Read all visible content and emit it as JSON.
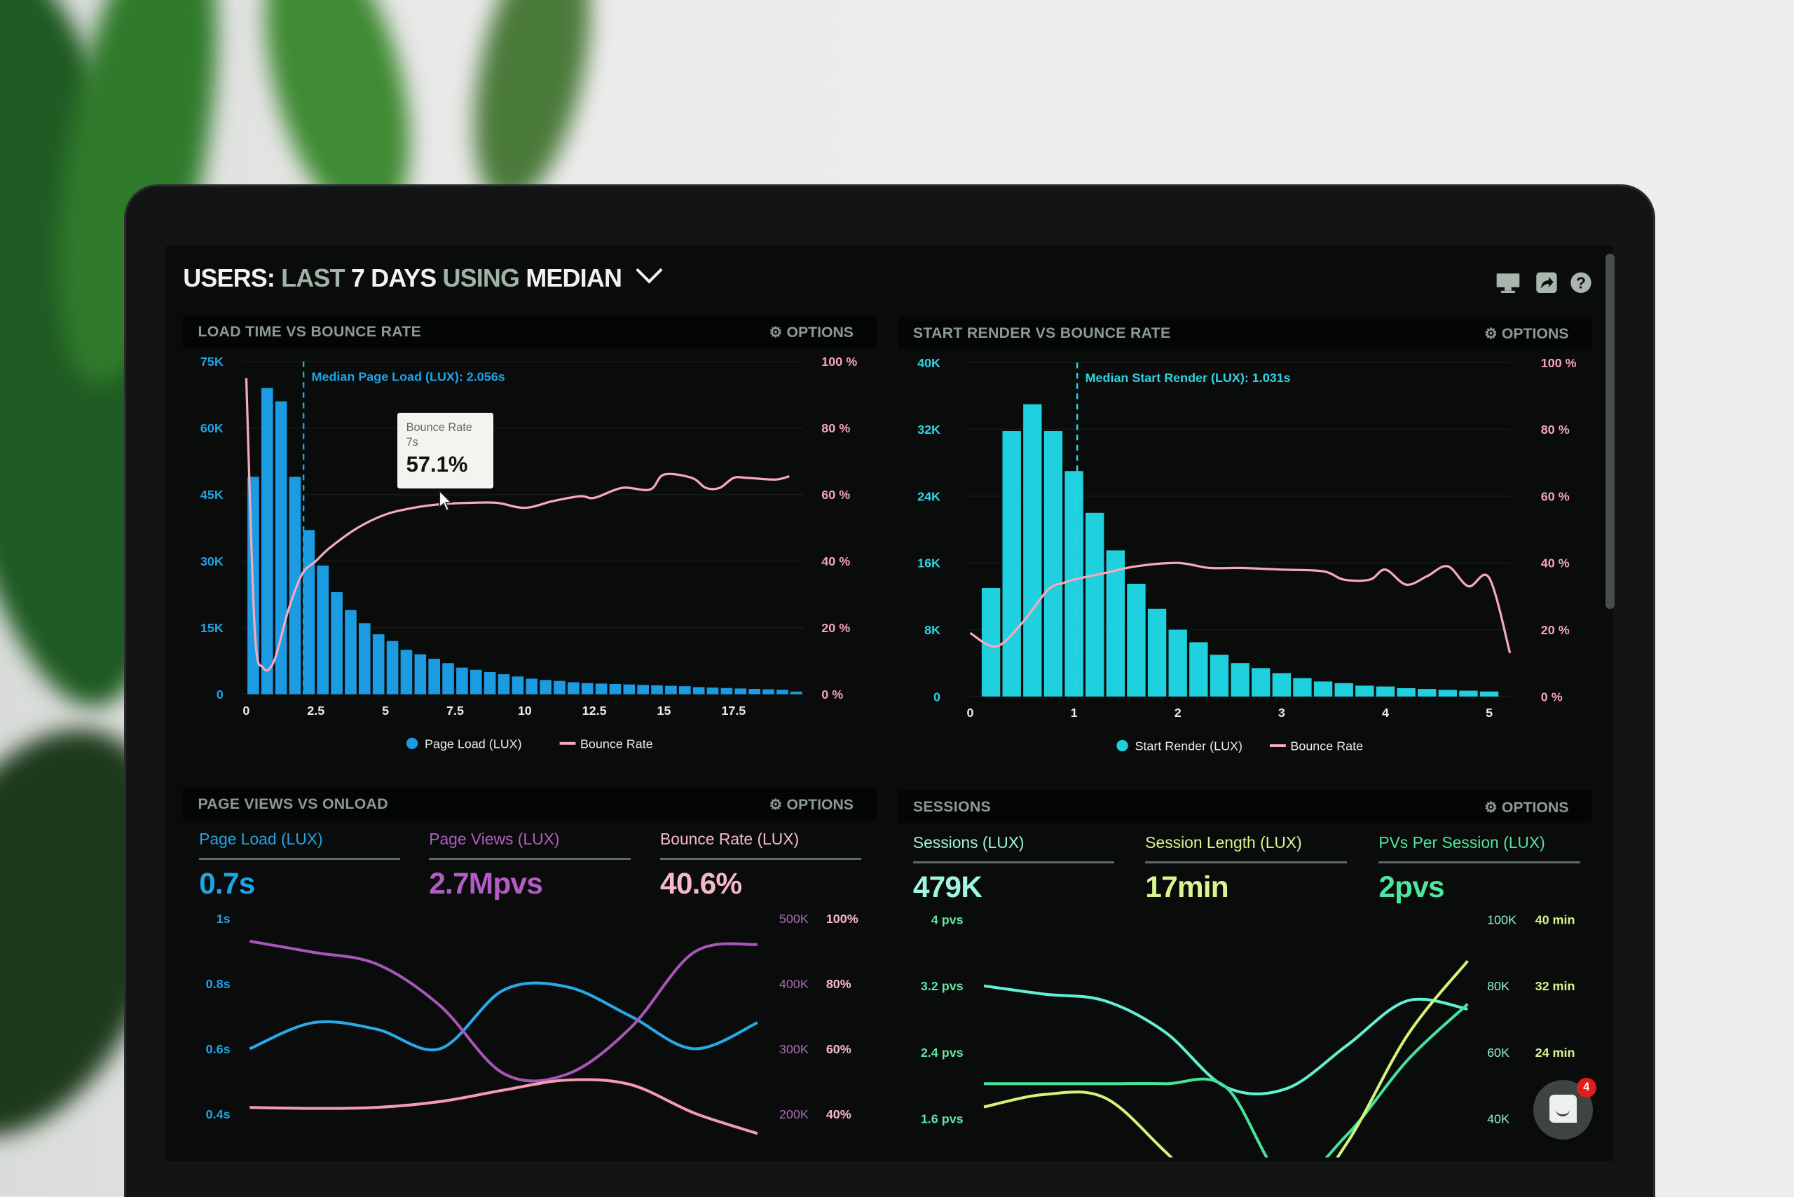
{
  "header": {
    "title_parts": [
      "USERS:",
      "LAST",
      "7 DAYS",
      "USING",
      "MEDIAN"
    ],
    "icons": [
      "monitor-icon",
      "share-icon",
      "help-icon"
    ],
    "help_glyph": "?"
  },
  "options_label": "OPTIONS",
  "tooltip": {
    "series": "Bounce Rate",
    "x": "7s",
    "value": "57.1%"
  },
  "chat": {
    "badge_count": "4"
  },
  "kpis_page_views": [
    {
      "label": "Page Load (LUX)",
      "value": "0.7s",
      "color": "#1ea5e6"
    },
    {
      "label": "Page Views (LUX)",
      "value": "2.7Mpvs",
      "color": "#b25cc4"
    },
    {
      "label": "Bounce Rate (LUX)",
      "value": "40.6%",
      "color": "#f7b9c8"
    }
  ],
  "kpis_sessions": [
    {
      "label": "Sessions (LUX)",
      "value": "479K",
      "color": "#9ff5e0"
    },
    {
      "label": "Session Length (LUX)",
      "value": "17min",
      "color": "#d9f58f"
    },
    {
      "label": "PVs Per Session (LUX)",
      "value": "2pvs",
      "color": "#4fe6a0"
    }
  ],
  "chart_data": [
    {
      "type": "bar+line",
      "title": "LOAD TIME VS BOUNCE RATE",
      "xlim": [
        0,
        20
      ],
      "ylim_left": [
        0,
        75000
      ],
      "ylim_right": [
        0,
        100
      ],
      "x_ticks": [
        {
          "v": 0,
          "label": "0"
        },
        {
          "v": 2.5,
          "label": "2.5"
        },
        {
          "v": 5,
          "label": "5"
        },
        {
          "v": 7.5,
          "label": "7.5"
        },
        {
          "v": 10,
          "label": "10"
        },
        {
          "v": 12.5,
          "label": "12.5"
        },
        {
          "v": 15,
          "label": "15"
        },
        {
          "v": 17.5,
          "label": "17.5"
        }
      ],
      "y_left_ticks": [
        {
          "v": 75000,
          "label": "75K"
        },
        {
          "v": 60000,
          "label": "60K"
        },
        {
          "v": 45000,
          "label": "45K"
        },
        {
          "v": 30000,
          "label": "30K"
        },
        {
          "v": 15000,
          "label": "15K"
        },
        {
          "v": 0,
          "label": "0"
        }
      ],
      "y_right_ticks": [
        {
          "v": 100,
          "label": "100 %"
        },
        {
          "v": 80,
          "label": "80 %"
        },
        {
          "v": 60,
          "label": "60 %"
        },
        {
          "v": 40,
          "label": "40 %"
        },
        {
          "v": 20,
          "label": "20 %"
        },
        {
          "v": 0,
          "label": "0 %"
        }
      ],
      "grid": true,
      "legend": [
        "Page Load (LUX)",
        "Bounce Rate"
      ],
      "legend_position": "bottom",
      "annotation": {
        "x": 2.056,
        "label": "Median Page Load (LUX): 2.056s"
      },
      "bar_series": {
        "name": "Page Load (LUX)",
        "color": "#1b9be2",
        "bin_width": 0.5,
        "x": [
          0,
          0.5,
          1,
          1.5,
          2,
          2.5,
          3,
          3.5,
          4,
          4.5,
          5,
          5.5,
          6,
          6.5,
          7,
          7.5,
          8,
          8.5,
          9,
          9.5,
          10,
          10.5,
          11,
          11.5,
          12,
          12.5,
          13,
          13.5,
          14,
          14.5,
          15,
          15.5,
          16,
          16.5,
          17,
          17.5,
          18,
          18.5,
          19,
          19.5
        ],
        "values": [
          49000,
          69000,
          66000,
          49000,
          37000,
          29000,
          23000,
          19000,
          16000,
          13500,
          12000,
          10000,
          9000,
          8000,
          7000,
          6000,
          5500,
          5000,
          4500,
          4000,
          3500,
          3200,
          3000,
          2700,
          2500,
          2400,
          2300,
          2200,
          2100,
          2000,
          1900,
          1800,
          1600,
          1500,
          1400,
          1300,
          1200,
          1100,
          1000,
          600
        ]
      },
      "line_series": {
        "name": "Bounce Rate",
        "color": "#f5a9bd",
        "x": [
          0,
          0.3,
          0.6,
          1.0,
          1.5,
          2,
          2.5,
          3,
          4,
          5,
          6,
          7,
          8,
          9,
          10,
          11,
          12,
          12.5,
          13.5,
          14.5,
          15,
          16,
          16.5,
          17,
          17.5,
          18,
          19,
          19.5
        ],
        "values": [
          95,
          20,
          8,
          10,
          25,
          36,
          40,
          44,
          50,
          54,
          56,
          57.1,
          57.5,
          57.5,
          56,
          58,
          59.5,
          59,
          62,
          61.5,
          66,
          65,
          62,
          62,
          65,
          65,
          64.5,
          65.5
        ]
      }
    },
    {
      "type": "bar+line",
      "title": "START RENDER VS BOUNCE RATE",
      "xlim": [
        0,
        5.2
      ],
      "ylim_left": [
        0,
        40000
      ],
      "ylim_right": [
        0,
        100
      ],
      "x_ticks": [
        {
          "v": 0,
          "label": "0"
        },
        {
          "v": 1,
          "label": "1"
        },
        {
          "v": 2,
          "label": "2"
        },
        {
          "v": 3,
          "label": "3"
        },
        {
          "v": 4,
          "label": "4"
        },
        {
          "v": 5,
          "label": "5"
        }
      ],
      "y_left_ticks": [
        {
          "v": 40000,
          "label": "40K"
        },
        {
          "v": 32000,
          "label": "32K"
        },
        {
          "v": 24000,
          "label": "24K"
        },
        {
          "v": 16000,
          "label": "16K"
        },
        {
          "v": 8000,
          "label": "8K"
        },
        {
          "v": 0,
          "label": "0"
        }
      ],
      "y_right_ticks": [
        {
          "v": 100,
          "label": "100 %"
        },
        {
          "v": 80,
          "label": "80 %"
        },
        {
          "v": 60,
          "label": "60 %"
        },
        {
          "v": 40,
          "label": "40 %"
        },
        {
          "v": 20,
          "label": "20 %"
        },
        {
          "v": 0,
          "label": "0 %"
        }
      ],
      "grid": true,
      "legend": [
        "Start Render (LUX)",
        "Bounce Rate"
      ],
      "legend_position": "bottom",
      "annotation": {
        "x": 1.031,
        "label": "Median Start Render (LUX): 1.031s"
      },
      "bar_series": {
        "name": "Start Render (LUX)",
        "color": "#1fd0df",
        "bin_width": 0.2,
        "x": [
          0.2,
          0.4,
          0.6,
          0.8,
          1.0,
          1.2,
          1.4,
          1.6,
          1.8,
          2.0,
          2.2,
          2.4,
          2.6,
          2.8,
          3.0,
          3.2,
          3.4,
          3.6,
          3.8,
          4.0,
          4.2,
          4.4,
          4.6,
          4.8,
          5.0
        ],
        "values": [
          13000,
          31800,
          35000,
          31800,
          27000,
          22000,
          17500,
          13500,
          10500,
          8000,
          6500,
          5000,
          4000,
          3400,
          2800,
          2200,
          1800,
          1600,
          1300,
          1200,
          1000,
          900,
          800,
          700,
          600
        ]
      },
      "line_series": {
        "name": "Bounce Rate",
        "color": "#f5a9bd",
        "x": [
          0,
          0.25,
          0.5,
          0.75,
          0.9,
          1.0,
          1.3,
          1.6,
          2.0,
          2.3,
          2.6,
          3.0,
          3.4,
          3.6,
          3.85,
          4.0,
          4.2,
          4.4,
          4.6,
          4.8,
          5.0,
          5.2
        ],
        "values": [
          19,
          15,
          22,
          32,
          34,
          35,
          37,
          39,
          40,
          38.5,
          38.5,
          38,
          37.5,
          35,
          35,
          38,
          33.5,
          36,
          39,
          33,
          35.5,
          13
        ]
      }
    },
    {
      "type": "line",
      "title": "PAGE VIEWS VS ONLOAD",
      "x": [
        0,
        1,
        2,
        3,
        4,
        5,
        6,
        7,
        8
      ],
      "axes": [
        {
          "side": "left",
          "ylim": [
            0.4,
            1.0
          ],
          "color": "#1ea5e6",
          "ticks": [
            {
              "v": 1.0,
              "label": "1s"
            },
            {
              "v": 0.8,
              "label": "0.8s"
            },
            {
              "v": 0.6,
              "label": "0.6s"
            },
            {
              "v": 0.4,
              "label": "0.4s"
            }
          ]
        },
        {
          "side": "right",
          "ylim": [
            200000,
            500000
          ],
          "color": "#a56ab4",
          "ticks": [
            {
              "v": 500000,
              "label": "500K"
            },
            {
              "v": 400000,
              "label": "400K"
            },
            {
              "v": 300000,
              "label": "300K"
            },
            {
              "v": 200000,
              "label": "200K"
            }
          ]
        },
        {
          "side": "right2",
          "ylim": [
            40,
            100
          ],
          "color": "#f7b9c8",
          "ticks": [
            {
              "v": 100,
              "label": "100%"
            },
            {
              "v": 80,
              "label": "80%"
            },
            {
              "v": 60,
              "label": "60%"
            },
            {
              "v": 40,
              "label": "40%"
            }
          ]
        }
      ],
      "series": [
        {
          "name": "Page Load (LUX)",
          "axis": 0,
          "color": "#29a9e8",
          "values": [
            0.6,
            0.68,
            0.66,
            0.6,
            0.78,
            0.79,
            0.7,
            0.6,
            0.68
          ]
        },
        {
          "name": "Page Views (LUX)",
          "axis": 1,
          "color": "#a855b8",
          "values": [
            465000,
            448000,
            430000,
            366000,
            262000,
            261000,
            332000,
            448000,
            460000
          ]
        },
        {
          "name": "Bounce Rate (LUX)",
          "axis": 2,
          "color": "#f59bb1",
          "values": [
            42,
            41.7,
            42,
            43.8,
            47.3,
            50.4,
            49,
            40.3,
            34
          ]
        }
      ]
    },
    {
      "type": "line",
      "title": "SESSIONS",
      "x": [
        0,
        1,
        2,
        3,
        4,
        5,
        6,
        7,
        8
      ],
      "axes": [
        {
          "side": "left",
          "ylim": [
            1.6,
            4.0
          ],
          "color": "#5fe8a6",
          "ticks": [
            {
              "v": 4.0,
              "label": "4 pvs"
            },
            {
              "v": 3.2,
              "label": "3.2 pvs"
            },
            {
              "v": 2.4,
              "label": "2.4 pvs"
            },
            {
              "v": 1.6,
              "label": "1.6 pvs"
            }
          ]
        },
        {
          "side": "right",
          "ylim": [
            40000,
            100000
          ],
          "color": "#8ff0d8",
          "ticks": [
            {
              "v": 100000,
              "label": "100K"
            },
            {
              "v": 80000,
              "label": "80K"
            },
            {
              "v": 60000,
              "label": "60K"
            },
            {
              "v": 40000,
              "label": "40K"
            }
          ]
        },
        {
          "side": "right2",
          "ylim": [
            16,
            40
          ],
          "color": "#d9f58f",
          "ticks": [
            {
              "v": 40,
              "label": "40 min"
            },
            {
              "v": 32,
              "label": "32 min"
            },
            {
              "v": 24,
              "label": "24 min"
            }
          ]
        }
      ],
      "series": [
        {
          "name": "Sessions (LUX)",
          "axis": 1,
          "color": "#62f0d2",
          "values": [
            80000,
            77500,
            75500,
            66000,
            49500,
            49000,
            62000,
            75500,
            73000
          ]
        },
        {
          "name": "PVs Per Session (LUX)",
          "axis": 0,
          "color": "#45e39b",
          "values": [
            2.02,
            2.02,
            2.02,
            2.02,
            1.98,
            0.85,
            1.4,
            2.3,
            2.98
          ]
        },
        {
          "name": "Session Length (LUX)",
          "axis": 2,
          "color": "#d6f27a",
          "values": [
            17.4,
            18.9,
            18.5,
            12,
            5,
            4,
            13,
            26,
            35
          ]
        }
      ]
    }
  ]
}
